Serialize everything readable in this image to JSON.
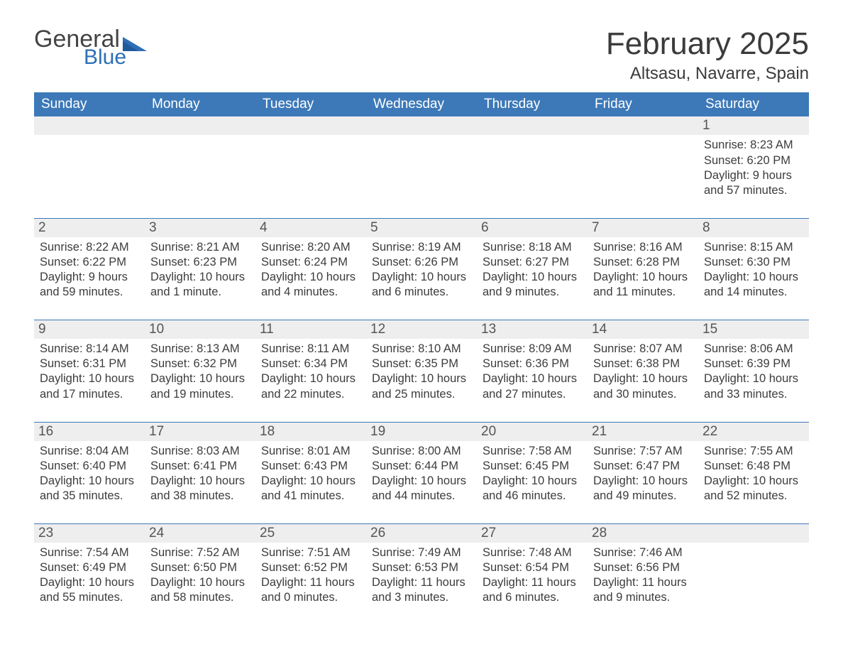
{
  "logo": {
    "word1": "General",
    "word2": "Blue"
  },
  "title": "February 2025",
  "location": "Altsasu, Navarre, Spain",
  "colors": {
    "header_bg": "#3d79b8",
    "header_text": "#ffffff",
    "daynum_bg": "#eeeeee",
    "rule": "#3d79b8",
    "text": "#3a3a3a",
    "logo_blue": "#2d6fb6"
  },
  "weekdays": [
    "Sunday",
    "Monday",
    "Tuesday",
    "Wednesday",
    "Thursday",
    "Friday",
    "Saturday"
  ],
  "weeks": [
    [
      {
        "n": "",
        "lines": []
      },
      {
        "n": "",
        "lines": []
      },
      {
        "n": "",
        "lines": []
      },
      {
        "n": "",
        "lines": []
      },
      {
        "n": "",
        "lines": []
      },
      {
        "n": "",
        "lines": []
      },
      {
        "n": "1",
        "lines": [
          "Sunrise: 8:23 AM",
          "Sunset: 6:20 PM",
          "Daylight: 9 hours and 57 minutes."
        ]
      }
    ],
    [
      {
        "n": "2",
        "lines": [
          "Sunrise: 8:22 AM",
          "Sunset: 6:22 PM",
          "Daylight: 9 hours and 59 minutes."
        ]
      },
      {
        "n": "3",
        "lines": [
          "Sunrise: 8:21 AM",
          "Sunset: 6:23 PM",
          "Daylight: 10 hours and 1 minute."
        ]
      },
      {
        "n": "4",
        "lines": [
          "Sunrise: 8:20 AM",
          "Sunset: 6:24 PM",
          "Daylight: 10 hours and 4 minutes."
        ]
      },
      {
        "n": "5",
        "lines": [
          "Sunrise: 8:19 AM",
          "Sunset: 6:26 PM",
          "Daylight: 10 hours and 6 minutes."
        ]
      },
      {
        "n": "6",
        "lines": [
          "Sunrise: 8:18 AM",
          "Sunset: 6:27 PM",
          "Daylight: 10 hours and 9 minutes."
        ]
      },
      {
        "n": "7",
        "lines": [
          "Sunrise: 8:16 AM",
          "Sunset: 6:28 PM",
          "Daylight: 10 hours and 11 minutes."
        ]
      },
      {
        "n": "8",
        "lines": [
          "Sunrise: 8:15 AM",
          "Sunset: 6:30 PM",
          "Daylight: 10 hours and 14 minutes."
        ]
      }
    ],
    [
      {
        "n": "9",
        "lines": [
          "Sunrise: 8:14 AM",
          "Sunset: 6:31 PM",
          "Daylight: 10 hours and 17 minutes."
        ]
      },
      {
        "n": "10",
        "lines": [
          "Sunrise: 8:13 AM",
          "Sunset: 6:32 PM",
          "Daylight: 10 hours and 19 minutes."
        ]
      },
      {
        "n": "11",
        "lines": [
          "Sunrise: 8:11 AM",
          "Sunset: 6:34 PM",
          "Daylight: 10 hours and 22 minutes."
        ]
      },
      {
        "n": "12",
        "lines": [
          "Sunrise: 8:10 AM",
          "Sunset: 6:35 PM",
          "Daylight: 10 hours and 25 minutes."
        ]
      },
      {
        "n": "13",
        "lines": [
          "Sunrise: 8:09 AM",
          "Sunset: 6:36 PM",
          "Daylight: 10 hours and 27 minutes."
        ]
      },
      {
        "n": "14",
        "lines": [
          "Sunrise: 8:07 AM",
          "Sunset: 6:38 PM",
          "Daylight: 10 hours and 30 minutes."
        ]
      },
      {
        "n": "15",
        "lines": [
          "Sunrise: 8:06 AM",
          "Sunset: 6:39 PM",
          "Daylight: 10 hours and 33 minutes."
        ]
      }
    ],
    [
      {
        "n": "16",
        "lines": [
          "Sunrise: 8:04 AM",
          "Sunset: 6:40 PM",
          "Daylight: 10 hours and 35 minutes."
        ]
      },
      {
        "n": "17",
        "lines": [
          "Sunrise: 8:03 AM",
          "Sunset: 6:41 PM",
          "Daylight: 10 hours and 38 minutes."
        ]
      },
      {
        "n": "18",
        "lines": [
          "Sunrise: 8:01 AM",
          "Sunset: 6:43 PM",
          "Daylight: 10 hours and 41 minutes."
        ]
      },
      {
        "n": "19",
        "lines": [
          "Sunrise: 8:00 AM",
          "Sunset: 6:44 PM",
          "Daylight: 10 hours and 44 minutes."
        ]
      },
      {
        "n": "20",
        "lines": [
          "Sunrise: 7:58 AM",
          "Sunset: 6:45 PM",
          "Daylight: 10 hours and 46 minutes."
        ]
      },
      {
        "n": "21",
        "lines": [
          "Sunrise: 7:57 AM",
          "Sunset: 6:47 PM",
          "Daylight: 10 hours and 49 minutes."
        ]
      },
      {
        "n": "22",
        "lines": [
          "Sunrise: 7:55 AM",
          "Sunset: 6:48 PM",
          "Daylight: 10 hours and 52 minutes."
        ]
      }
    ],
    [
      {
        "n": "23",
        "lines": [
          "Sunrise: 7:54 AM",
          "Sunset: 6:49 PM",
          "Daylight: 10 hours and 55 minutes."
        ]
      },
      {
        "n": "24",
        "lines": [
          "Sunrise: 7:52 AM",
          "Sunset: 6:50 PM",
          "Daylight: 10 hours and 58 minutes."
        ]
      },
      {
        "n": "25",
        "lines": [
          "Sunrise: 7:51 AM",
          "Sunset: 6:52 PM",
          "Daylight: 11 hours and 0 minutes."
        ]
      },
      {
        "n": "26",
        "lines": [
          "Sunrise: 7:49 AM",
          "Sunset: 6:53 PM",
          "Daylight: 11 hours and 3 minutes."
        ]
      },
      {
        "n": "27",
        "lines": [
          "Sunrise: 7:48 AM",
          "Sunset: 6:54 PM",
          "Daylight: 11 hours and 6 minutes."
        ]
      },
      {
        "n": "28",
        "lines": [
          "Sunrise: 7:46 AM",
          "Sunset: 6:56 PM",
          "Daylight: 11 hours and 9 minutes."
        ]
      },
      {
        "n": "",
        "lines": []
      }
    ]
  ]
}
